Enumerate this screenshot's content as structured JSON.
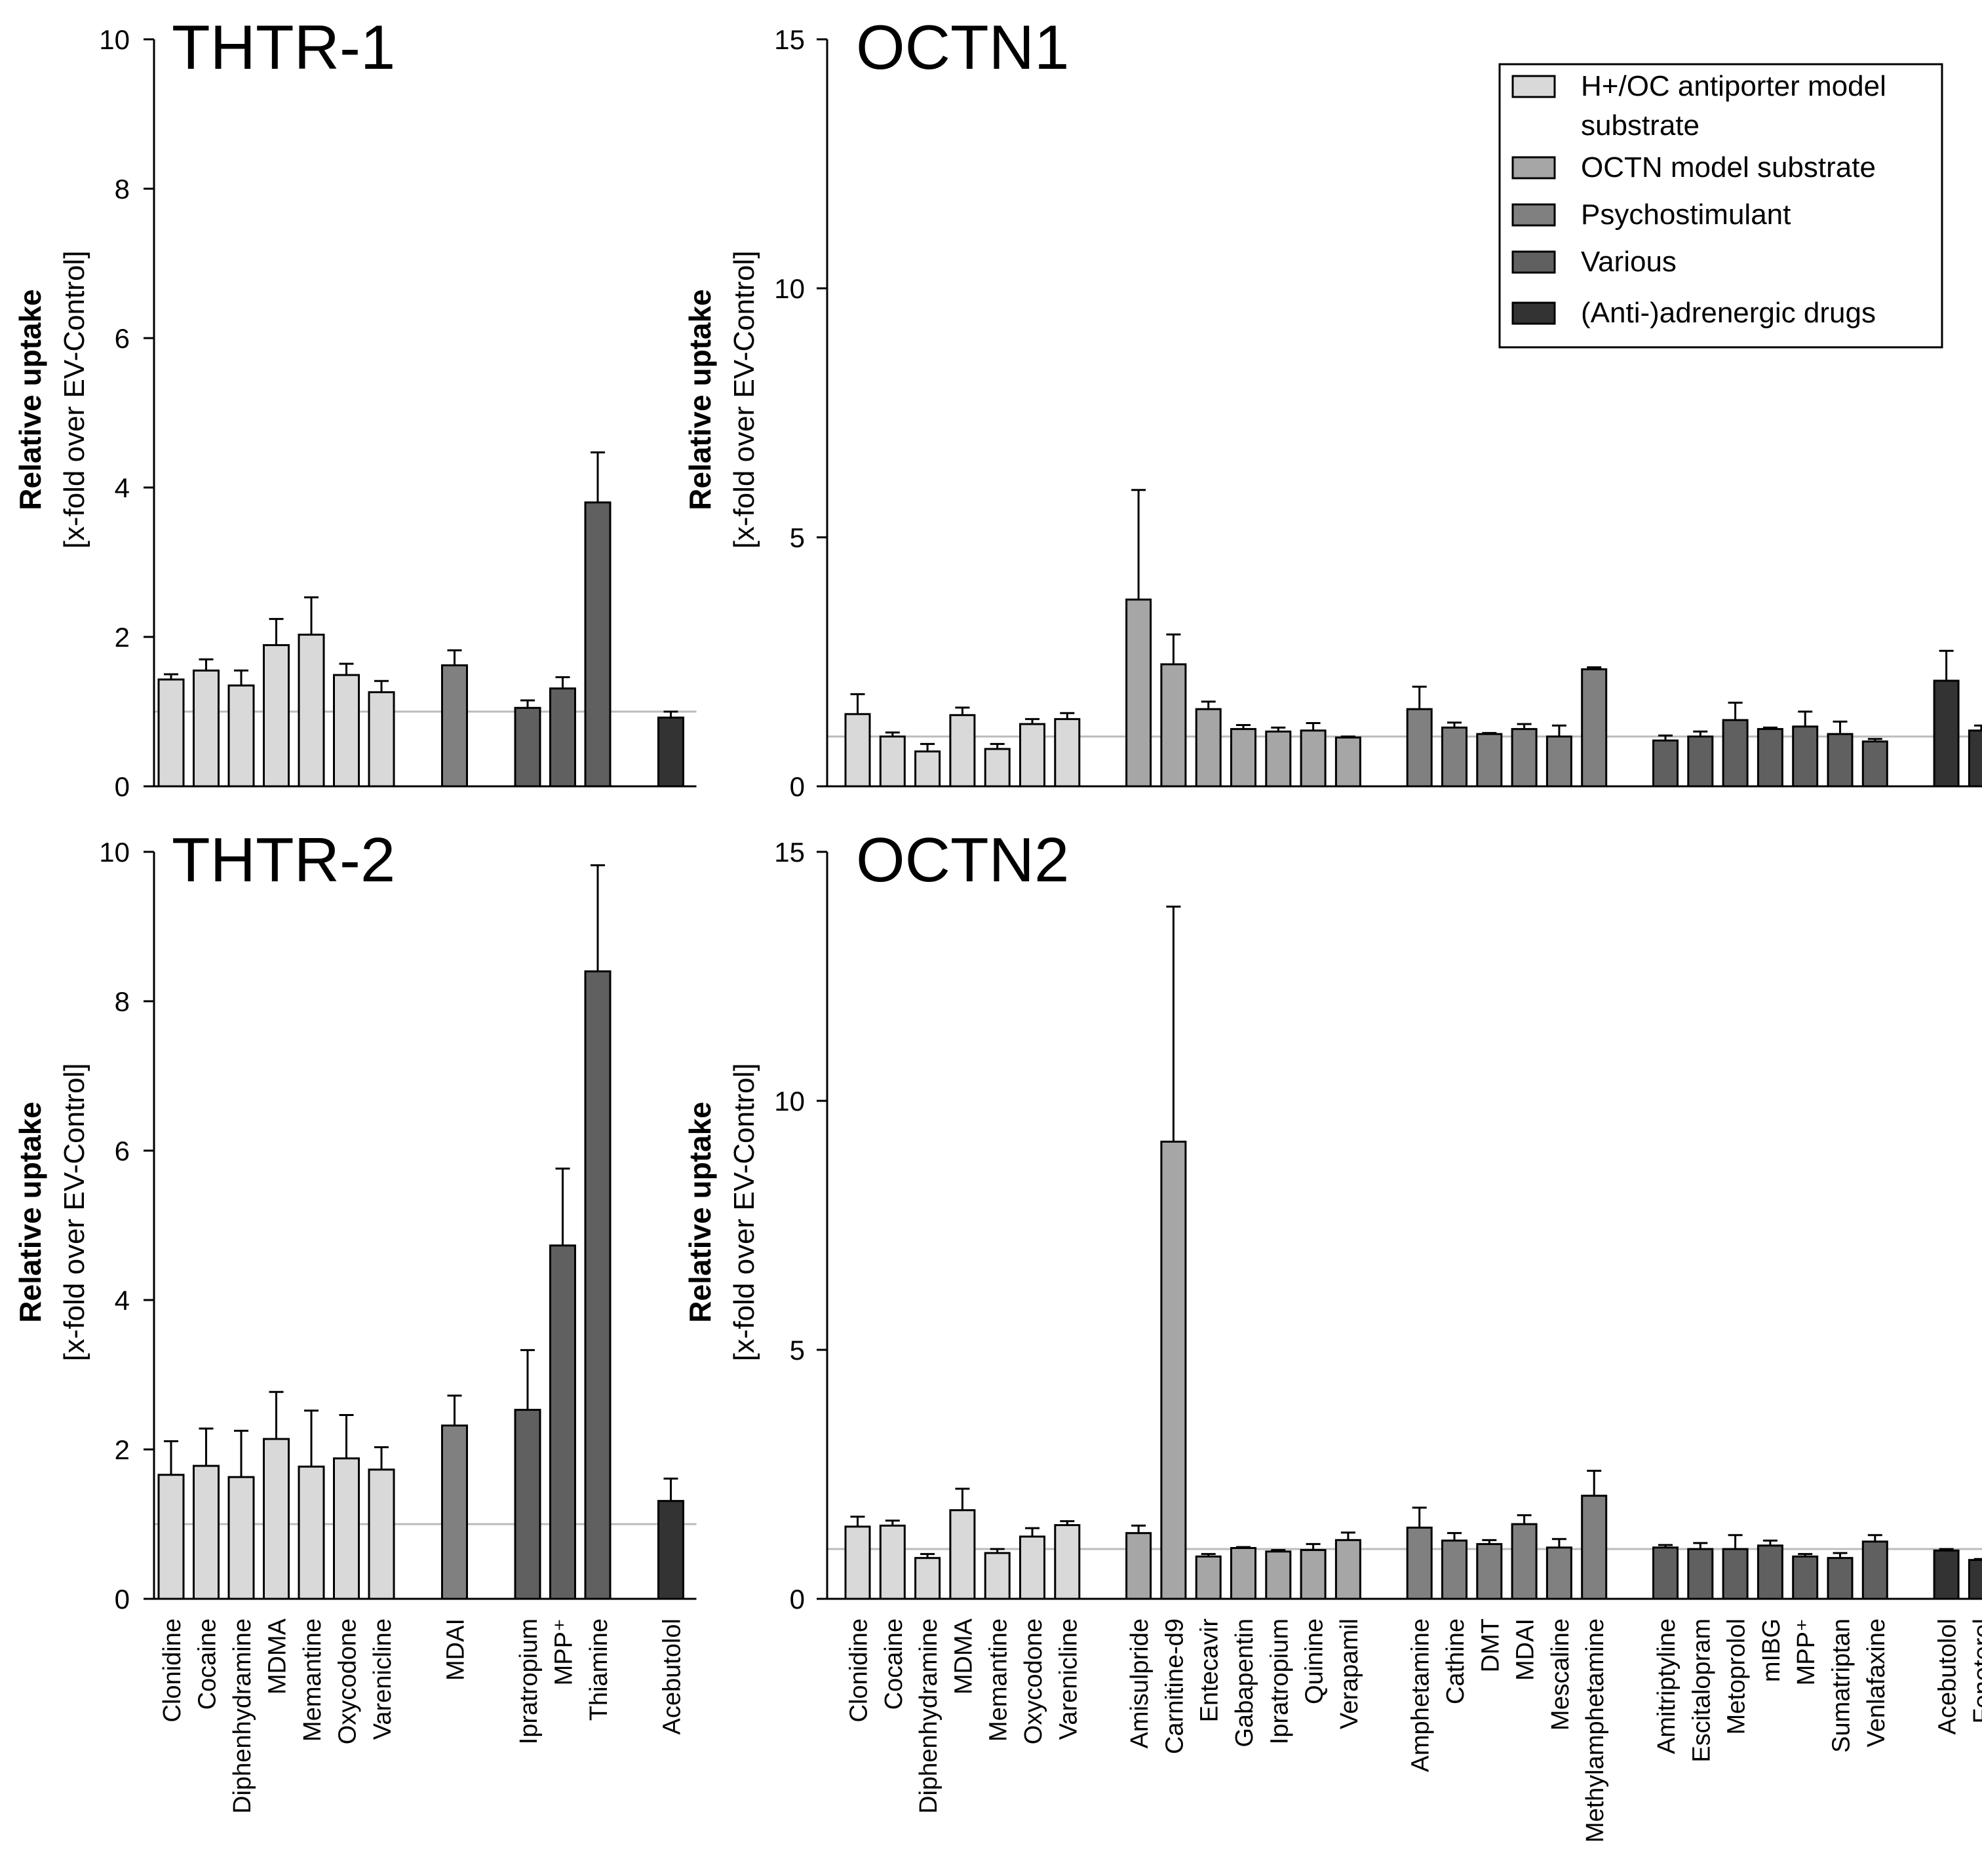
{
  "chart_data": [
    {
      "type": "bar",
      "title": "THTR-1",
      "ylabel": "Relative uptake",
      "ylabel_sub": "[x-fold over EV-Control]",
      "ylim": [
        0,
        10
      ],
      "yticks": [
        "0",
        "2",
        "4",
        "6",
        "8",
        "10"
      ],
      "reference_line": 1,
      "groups": [
        {
          "category": "H+/OC antiporter model substrate",
          "items": [
            {
              "label": "Clonidine",
              "value": 1.43,
              "error": 0.07
            },
            {
              "label": "Cocaine",
              "value": 1.55,
              "error": 0.15
            },
            {
              "label": "Diphenhydramine",
              "value": 1.35,
              "error": 0.2
            },
            {
              "label": "MDMA",
              "value": 1.89,
              "error": 0.35
            },
            {
              "label": "Memantine",
              "value": 2.03,
              "error": 0.5
            },
            {
              "label": "Oxycodone",
              "value": 1.49,
              "error": 0.15
            },
            {
              "label": "Varenicline",
              "value": 1.26,
              "error": 0.15
            }
          ]
        },
        {
          "category": "Psychostimulant",
          "items": [
            {
              "label": "MDAI",
              "value": 1.62,
              "error": 0.2
            }
          ]
        },
        {
          "category": "Various",
          "items": [
            {
              "label": "Ipratropium",
              "value": 1.05,
              "error": 0.1
            },
            {
              "label": "MPP⁺",
              "value": 1.31,
              "error": 0.15
            },
            {
              "label": "Thiamine",
              "value": 3.8,
              "error": 0.67
            }
          ]
        },
        {
          "category": "(Anti-)adrenergic drugs",
          "items": [
            {
              "label": "Acebutolol",
              "value": 0.92,
              "error": 0.08
            }
          ]
        }
      ]
    },
    {
      "type": "bar",
      "title": "OCTN1",
      "ylabel": "Relative uptake",
      "ylabel_sub": "[x-fold over EV-Control]",
      "ylim": [
        0,
        15
      ],
      "yticks": [
        "0",
        "5",
        "10",
        "15"
      ],
      "reference_line": 1,
      "groups": [
        {
          "category": "H+/OC antiporter model substrate",
          "items": [
            {
              "label": "Clonidine",
              "value": 1.45,
              "error": 0.4
            },
            {
              "label": "Cocaine",
              "value": 1.0,
              "error": 0.08
            },
            {
              "label": "Diphenhydramine",
              "value": 0.7,
              "error": 0.15
            },
            {
              "label": "MDMA",
              "value": 1.43,
              "error": 0.15
            },
            {
              "label": "Memantine",
              "value": 0.75,
              "error": 0.1
            },
            {
              "label": "Oxycodone",
              "value": 1.25,
              "error": 0.1
            },
            {
              "label": "Varenicline",
              "value": 1.35,
              "error": 0.12
            }
          ]
        },
        {
          "category": "OCTN model substrate",
          "items": [
            {
              "label": "Amisulpride",
              "value": 3.75,
              "error": 2.2
            },
            {
              "label": "Carnitine-d9",
              "value": 2.45,
              "error": 0.6
            },
            {
              "label": "Entecavir",
              "value": 1.55,
              "error": 0.15
            },
            {
              "label": "Gabapentin",
              "value": 1.15,
              "error": 0.08
            },
            {
              "label": "Ipratropium",
              "value": 1.1,
              "error": 0.08
            },
            {
              "label": "Quinine",
              "value": 1.12,
              "error": 0.15
            },
            {
              "label": "Verapamil",
              "value": 0.98,
              "error": 0.02
            }
          ]
        },
        {
          "category": "Psychostimulant",
          "items": [
            {
              "label": "Amphetamine",
              "value": 1.55,
              "error": 0.45
            },
            {
              "label": "Cathine",
              "value": 1.18,
              "error": 0.1
            },
            {
              "label": "DMT",
              "value": 1.05,
              "error": 0.02
            },
            {
              "label": "MDAI",
              "value": 1.15,
              "error": 0.1
            },
            {
              "label": "Mescaline",
              "value": 1.0,
              "error": 0.22
            },
            {
              "label": "Methylamphetamine",
              "value": 2.35,
              "error": 0.04
            }
          ]
        },
        {
          "category": "Various",
          "items": [
            {
              "label": "Amitriptyline",
              "value": 0.92,
              "error": 0.1
            },
            {
              "label": "Escitalopram",
              "value": 1.0,
              "error": 0.1
            },
            {
              "label": "Metoprolol",
              "value": 1.33,
              "error": 0.35
            },
            {
              "label": "mIBG",
              "value": 1.15,
              "error": 0.03
            },
            {
              "label": "MPP⁺",
              "value": 1.2,
              "error": 0.3
            },
            {
              "label": "Sumatriptan",
              "value": 1.05,
              "error": 0.25
            },
            {
              "label": "Venlafaxine",
              "value": 0.9,
              "error": 0.05
            }
          ]
        },
        {
          "category": "(Anti-)adrenergic drugs",
          "items": [
            {
              "label": "Acebutolol",
              "value": 2.12,
              "error": 0.6
            },
            {
              "label": "Fenoterol",
              "value": 1.12,
              "error": 0.1
            }
          ]
        }
      ]
    },
    {
      "type": "bar",
      "title": "THTR-2",
      "ylabel": "Relative uptake",
      "ylabel_sub": "[x-fold over EV-Control]",
      "ylim": [
        0,
        10
      ],
      "yticks": [
        "0",
        "2",
        "4",
        "6",
        "8",
        "10"
      ],
      "reference_line": 1,
      "xticklabels_shown": true,
      "groups": [
        {
          "category": "H+/OC antiporter model substrate",
          "items": [
            {
              "label": "Clonidine",
              "value": 1.66,
              "error": 0.45
            },
            {
              "label": "Cocaine",
              "value": 1.78,
              "error": 0.5
            },
            {
              "label": "Diphenhydramine",
              "value": 1.63,
              "error": 0.62
            },
            {
              "label": "MDMA",
              "value": 2.14,
              "error": 0.63
            },
            {
              "label": "Memantine",
              "value": 1.77,
              "error": 0.75
            },
            {
              "label": "Oxycodone",
              "value": 1.88,
              "error": 0.58
            },
            {
              "label": "Varenicline",
              "value": 1.73,
              "error": 0.3
            }
          ]
        },
        {
          "category": "Psychostimulant",
          "items": [
            {
              "label": "MDAI",
              "value": 2.32,
              "error": 0.4
            }
          ]
        },
        {
          "category": "Various",
          "items": [
            {
              "label": "Ipratropium",
              "value": 2.53,
              "error": 0.8
            },
            {
              "label": "MPP⁺",
              "value": 4.73,
              "error": 1.03
            },
            {
              "label": "Thiamine",
              "value": 8.4,
              "error": 1.42
            }
          ]
        },
        {
          "category": "(Anti-)adrenergic drugs",
          "items": [
            {
              "label": "Acebutolol",
              "value": 1.31,
              "error": 0.3
            }
          ]
        }
      ]
    },
    {
      "type": "bar",
      "title": "OCTN2",
      "ylabel": "Relative uptake",
      "ylabel_sub": "[x-fold over EV-Control]",
      "ylim": [
        0,
        15
      ],
      "yticks": [
        "0",
        "5",
        "10",
        "15"
      ],
      "reference_line": 1,
      "xticklabels_shown": true,
      "groups": [
        {
          "category": "H+/OC antiporter model substrate",
          "items": [
            {
              "label": "Clonidine",
              "value": 1.45,
              "error": 0.2
            },
            {
              "label": "Cocaine",
              "value": 1.47,
              "error": 0.1
            },
            {
              "label": "Diphenhydramine",
              "value": 0.82,
              "error": 0.08
            },
            {
              "label": "MDMA",
              "value": 1.78,
              "error": 0.43
            },
            {
              "label": "Memantine",
              "value": 0.92,
              "error": 0.08
            },
            {
              "label": "Oxycodone",
              "value": 1.25,
              "error": 0.17
            },
            {
              "label": "Varenicline",
              "value": 1.48,
              "error": 0.08
            }
          ]
        },
        {
          "category": "OCTN model substrate",
          "items": [
            {
              "label": "Amisulpride",
              "value": 1.32,
              "error": 0.15
            },
            {
              "label": "Carnitine-d9",
              "value": 9.18,
              "error": 4.72
            },
            {
              "label": "Entecavir",
              "value": 0.85,
              "error": 0.05
            },
            {
              "label": "Gabapentin",
              "value": 1.02,
              "error": 0.02
            },
            {
              "label": "Ipratropium",
              "value": 0.95,
              "error": 0.03
            },
            {
              "label": "Quinine",
              "value": 0.98,
              "error": 0.12
            },
            {
              "label": "Verapamil",
              "value": 1.18,
              "error": 0.15
            }
          ]
        },
        {
          "category": "Psychostimulant",
          "items": [
            {
              "label": "Amphetamine",
              "value": 1.43,
              "error": 0.4
            },
            {
              "label": "Cathine",
              "value": 1.17,
              "error": 0.15
            },
            {
              "label": "DMT",
              "value": 1.1,
              "error": 0.08
            },
            {
              "label": "MDAI",
              "value": 1.5,
              "error": 0.18
            },
            {
              "label": "Mescaline",
              "value": 1.03,
              "error": 0.17
            },
            {
              "label": "Methylamphetamine",
              "value": 2.07,
              "error": 0.5
            }
          ]
        },
        {
          "category": "Various",
          "items": [
            {
              "label": "Amitriptyline",
              "value": 1.03,
              "error": 0.05
            },
            {
              "label": "Escitalopram",
              "value": 1.0,
              "error": 0.12
            },
            {
              "label": "Metoprolol",
              "value": 1.0,
              "error": 0.28
            },
            {
              "label": "mIBG",
              "value": 1.07,
              "error": 0.1
            },
            {
              "label": "MPP⁺",
              "value": 0.85,
              "error": 0.05
            },
            {
              "label": "Sumatriptan",
              "value": 0.82,
              "error": 0.1
            },
            {
              "label": "Venlafaxine",
              "value": 1.15,
              "error": 0.13
            }
          ]
        },
        {
          "category": "(Anti-)adrenergic drugs",
          "items": [
            {
              "label": "Acebutolol",
              "value": 0.97,
              "error": 0.03
            },
            {
              "label": "Fenoterol",
              "value": 0.78,
              "error": 0.02
            }
          ]
        }
      ]
    }
  ],
  "legend": {
    "placement": "top-right",
    "entries": [
      {
        "label_lines": [
          "H+/OC antiporter model",
          "substrate"
        ],
        "color": "#d9d9d9"
      },
      {
        "label_lines": [
          "OCTN model substrate"
        ],
        "color": "#a6a6a6"
      },
      {
        "label_lines": [
          "Psychostimulant"
        ],
        "color": "#808080"
      },
      {
        "label_lines": [
          "Various"
        ],
        "color": "#606060"
      },
      {
        "label_lines": [
          "(Anti-)adrenergic drugs"
        ],
        "color": "#333333"
      }
    ]
  },
  "category_colors": {
    "H+/OC antiporter model substrate": "#d9d9d9",
    "OCTN model substrate": "#a6a6a6",
    "Psychostimulant": "#808080",
    "Various": "#606060",
    "(Anti-)adrenergic drugs": "#333333"
  },
  "reference_line_color": "#bbbbbb"
}
